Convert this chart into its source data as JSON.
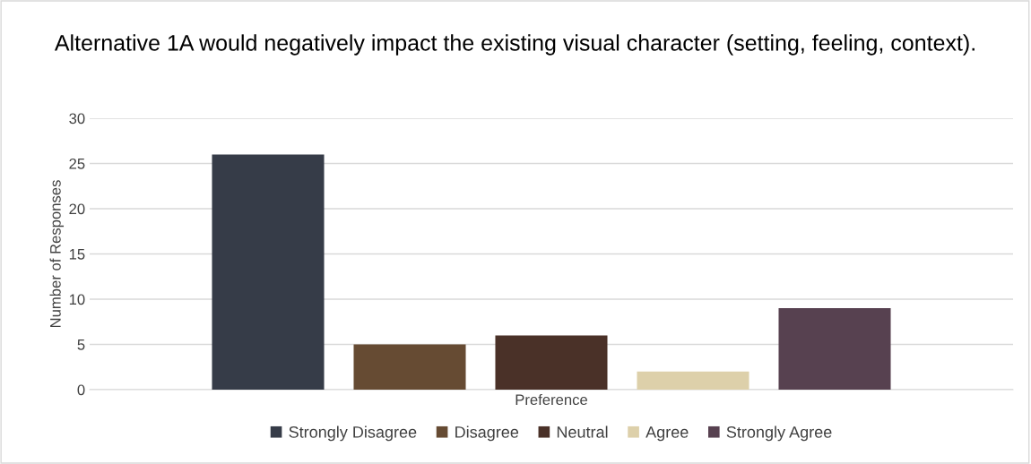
{
  "chart_data": {
    "type": "bar",
    "title": "Alternative 1A would negatively impact the existing visual character (setting, feeling, context).",
    "ylabel": "Number of Responses",
    "categories": [
      "Preference"
    ],
    "series": [
      {
        "name": "Strongly Disagree",
        "color": "#363c48",
        "values": [
          26
        ]
      },
      {
        "name": "Disagree",
        "color": "#664b33",
        "values": [
          5
        ]
      },
      {
        "name": "Neutral",
        "color": "#4a3128",
        "values": [
          6
        ]
      },
      {
        "name": "Agree",
        "color": "#ddd0aa",
        "values": [
          2
        ]
      },
      {
        "name": "Strongly Agree",
        "color": "#574150",
        "values": [
          9
        ]
      }
    ],
    "ylim": [
      0,
      30
    ],
    "yticks": [
      0,
      5,
      10,
      15,
      20,
      25,
      30
    ],
    "grid": "y",
    "legend": "bottom"
  }
}
